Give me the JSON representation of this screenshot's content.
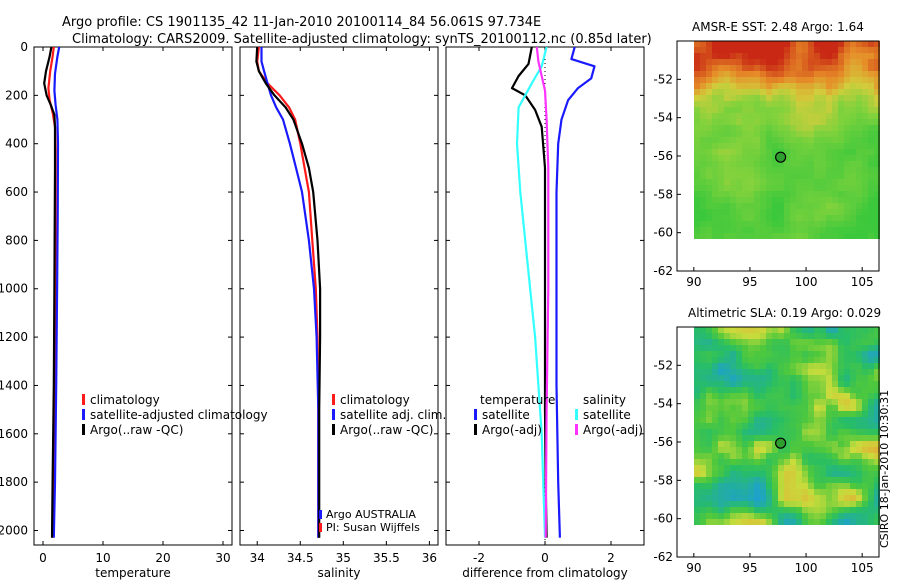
{
  "title": {
    "line1": "Argo profile: CS 1901135_42 11-Jan-2010 20100114_84 56.061S 97.734E",
    "line2": "Climatology: CARS2009. Satellite-adjusted climatology: synTS_20100112.nc (0.85d later)"
  },
  "side_label": "CSIRO 18-Jan-2010 10:30:31",
  "colors": {
    "clim": "#ff1a1a",
    "sat": "#1a1aff",
    "argo": "#000000",
    "cyan": "#33ffff",
    "magenta": "#ff33ff"
  },
  "chart_data": [
    {
      "type": "line",
      "name": "temperature",
      "xlabel": "temperature",
      "xlim": [
        -1.5,
        31.5
      ],
      "ylim": [
        2060,
        0
      ],
      "xticks": [
        0,
        10,
        20,
        30
      ],
      "yticks": [
        0,
        200,
        400,
        600,
        800,
        1000,
        1200,
        1400,
        1600,
        1800,
        2000
      ],
      "legend": [
        "climatology",
        "satellite-adjusted climatology",
        "Argo(..raw -QC)"
      ],
      "series": [
        {
          "name": "climatology",
          "color": "clim",
          "points": [
            [
              1.8,
              0
            ],
            [
              1.6,
              40
            ],
            [
              1.2,
              100
            ],
            [
              0.9,
              170
            ],
            [
              1.1,
              220
            ],
            [
              1.6,
              270
            ],
            [
              2.0,
              330
            ],
            [
              2.1,
              420
            ],
            [
              2.1,
              600
            ],
            [
              2.05,
              1000
            ],
            [
              1.95,
              1400
            ],
            [
              1.8,
              1800
            ],
            [
              1.6,
              2030
            ]
          ]
        },
        {
          "name": "satellite-adjusted climatology",
          "color": "sat",
          "points": [
            [
              2.7,
              0
            ],
            [
              2.4,
              40
            ],
            [
              2.0,
              110
            ],
            [
              1.9,
              180
            ],
            [
              2.1,
              240
            ],
            [
              2.4,
              300
            ],
            [
              2.5,
              400
            ],
            [
              2.45,
              700
            ],
            [
              2.35,
              1000
            ],
            [
              2.2,
              1400
            ],
            [
              2.0,
              1800
            ],
            [
              1.8,
              2030
            ]
          ]
        },
        {
          "name": "Argo(..raw -QC)",
          "color": "argo",
          "points": [
            [
              1.4,
              0
            ],
            [
              1.1,
              40
            ],
            [
              0.5,
              100
            ],
            [
              0.2,
              150
            ],
            [
              0.6,
              200
            ],
            [
              1.3,
              240
            ],
            [
              1.9,
              280
            ],
            [
              2.0,
              330
            ],
            [
              2.0,
              500
            ],
            [
              1.9,
              1000
            ],
            [
              1.8,
              1400
            ],
            [
              1.6,
              1800
            ],
            [
              1.5,
              2030
            ]
          ]
        }
      ]
    },
    {
      "type": "line",
      "name": "salinity",
      "xlabel": "salinity",
      "xlim": [
        33.8,
        36.1
      ],
      "ylim": [
        2060,
        0
      ],
      "xticks": [
        34,
        34.5,
        35,
        35.5,
        36
      ],
      "tick_labels": [
        "34",
        "34.5",
        "35",
        "35.5",
        "36"
      ],
      "legend": [
        "climatology",
        "satellite adj. clim.",
        "Argo(..raw -QC)"
      ],
      "annotations": [
        "Argo AUSTRALIA",
        "PI: Susan Wijffels"
      ],
      "series": [
        {
          "name": "climatology",
          "color": "clim",
          "points": [
            [
              34.02,
              0
            ],
            [
              34.0,
              60
            ],
            [
              34.02,
              100
            ],
            [
              34.12,
              150
            ],
            [
              34.26,
              200
            ],
            [
              34.37,
              250
            ],
            [
              34.44,
              300
            ],
            [
              34.5,
              400
            ],
            [
              34.55,
              500
            ],
            [
              34.6,
              600
            ],
            [
              34.64,
              800
            ],
            [
              34.68,
              1000
            ],
            [
              34.7,
              1200
            ],
            [
              34.71,
              1500
            ],
            [
              34.71,
              1800
            ],
            [
              34.71,
              2030
            ]
          ]
        },
        {
          "name": "satellite adj. clim.",
          "color": "sat",
          "points": [
            [
              34.05,
              0
            ],
            [
              34.05,
              60
            ],
            [
              34.08,
              100
            ],
            [
              34.12,
              150
            ],
            [
              34.16,
              200
            ],
            [
              34.22,
              250
            ],
            [
              34.3,
              300
            ],
            [
              34.38,
              400
            ],
            [
              34.45,
              500
            ],
            [
              34.52,
              600
            ],
            [
              34.6,
              800
            ],
            [
              34.66,
              1000
            ],
            [
              34.69,
              1200
            ],
            [
              34.71,
              1500
            ],
            [
              34.71,
              1800
            ],
            [
              34.71,
              2030
            ]
          ]
        },
        {
          "name": "Argo(..raw -QC)",
          "color": "argo",
          "points": [
            [
              34.0,
              0
            ],
            [
              33.99,
              60
            ],
            [
              34.02,
              100
            ],
            [
              34.1,
              150
            ],
            [
              34.2,
              200
            ],
            [
              34.33,
              250
            ],
            [
              34.42,
              300
            ],
            [
              34.52,
              400
            ],
            [
              34.6,
              500
            ],
            [
              34.65,
              600
            ],
            [
              34.7,
              800
            ],
            [
              34.73,
              1000
            ],
            [
              34.73,
              1200
            ],
            [
              34.72,
              1500
            ],
            [
              34.72,
              1800
            ],
            [
              34.72,
              2030
            ]
          ]
        }
      ]
    },
    {
      "type": "line",
      "name": "difference",
      "xlabel": "difference from climatology",
      "xlim": [
        -3.0,
        3.0
      ],
      "ylim": [
        2060,
        0
      ],
      "xticks": [
        -2,
        0,
        2
      ],
      "legend_left_title": "temperature",
      "legend_left": [
        "satellite",
        "Argo(-adj)"
      ],
      "legend_right_title": "salinity",
      "legend_right": [
        "satellite",
        "Argo(-adj)"
      ],
      "series": [
        {
          "name": "temperature satellite",
          "color": "sat",
          "points": [
            [
              0.9,
              0
            ],
            [
              0.8,
              50
            ],
            [
              1.5,
              80
            ],
            [
              1.4,
              130
            ],
            [
              1.0,
              170
            ],
            [
              0.7,
              220
            ],
            [
              0.5,
              300
            ],
            [
              0.4,
              400
            ],
            [
              0.35,
              600
            ],
            [
              0.35,
              1000
            ],
            [
              0.35,
              1400
            ],
            [
              0.4,
              1800
            ],
            [
              0.45,
              2030
            ]
          ]
        },
        {
          "name": "temperature Argo(-adj)",
          "color": "argo",
          "points": [
            [
              -0.4,
              0
            ],
            [
              -0.5,
              70
            ],
            [
              -0.8,
              120
            ],
            [
              -1.0,
              170
            ],
            [
              -0.6,
              200
            ],
            [
              -0.3,
              260
            ],
            [
              -0.1,
              330
            ],
            [
              0.0,
              500
            ],
            [
              0.0,
              1000
            ],
            [
              0.0,
              1500
            ],
            [
              0.02,
              1800
            ],
            [
              0.05,
              2030
            ]
          ]
        },
        {
          "name": "salinity satellite",
          "color": "cyan",
          "points": [
            [
              0.05,
              0
            ],
            [
              -0.1,
              80
            ],
            [
              -0.4,
              150
            ],
            [
              -0.8,
              250
            ],
            [
              -0.85,
              400
            ],
            [
              -0.75,
              600
            ],
            [
              -0.6,
              800
            ],
            [
              -0.3,
              1200
            ],
            [
              -0.1,
              1600
            ],
            [
              0.0,
              2030
            ]
          ]
        },
        {
          "name": "salinity Argo(-adj)",
          "color": "magenta",
          "points": [
            [
              -0.25,
              0
            ],
            [
              -0.2,
              60
            ],
            [
              -0.1,
              120
            ],
            [
              0.0,
              180
            ],
            [
              0.05,
              300
            ],
            [
              0.1,
              500
            ],
            [
              0.1,
              1000
            ],
            [
              0.05,
              1500
            ],
            [
              0.02,
              2030
            ]
          ]
        }
      ]
    },
    {
      "type": "heatmap",
      "name": "sst-map",
      "title": "AMSR-E SST: 2.48 Argo: 1.64",
      "xlim": [
        88.5,
        106.5
      ],
      "ylim": [
        -62,
        -50
      ],
      "xticks": [
        90,
        95,
        100,
        105
      ],
      "yticks": [
        -52,
        -54,
        -56,
        -58,
        -60,
        -62
      ],
      "marker": [
        97.734,
        -56.061
      ]
    },
    {
      "type": "heatmap",
      "name": "sla-map",
      "title": "Altimetric SLA: 0.19 Argo: 0.029",
      "xlim": [
        88.5,
        106.5
      ],
      "ylim": [
        -62,
        -50
      ],
      "xticks": [
        90,
        95,
        100,
        105
      ],
      "yticks": [
        -52,
        -54,
        -56,
        -58,
        -60,
        -62
      ],
      "marker": [
        97.734,
        -56.061
      ]
    }
  ]
}
